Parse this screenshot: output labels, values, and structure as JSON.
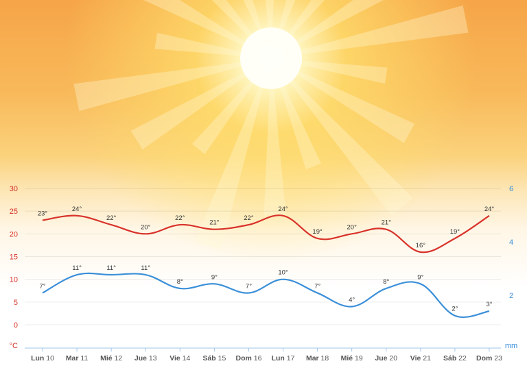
{
  "chart_data": {
    "type": "line",
    "categories": [
      "Lun 10",
      "Mar 11",
      "Mié 12",
      "Jue 13",
      "Vie 14",
      "Sáb 15",
      "Dom 16",
      "Lun 17",
      "Mar 18",
      "Mié 19",
      "Jue 20",
      "Vie 21",
      "Sáb 22",
      "Dom 23"
    ],
    "series": [
      {
        "values": [
          23,
          24,
          22,
          20,
          22,
          21,
          22,
          24,
          19,
          20,
          21,
          16,
          19,
          24
        ],
        "color": "#d8322a"
      },
      {
        "values": [
          7,
          11,
          11,
          11,
          8,
          9,
          7,
          10,
          7,
          4,
          8,
          9,
          2,
          3
        ],
        "color": "#3a8fd9"
      }
    ],
    "y_left": {
      "label": "°C",
      "ticks": [
        "30",
        "25",
        "20",
        "15",
        "10",
        "5",
        "0"
      ],
      "range": [
        0,
        30
      ],
      "color": "#d8322a"
    },
    "y_right": {
      "label": "mm",
      "ticks": [
        "6",
        "4",
        "2"
      ],
      "color": "#3a8fd9"
    },
    "value_suffix": "°",
    "grid": true
  }
}
